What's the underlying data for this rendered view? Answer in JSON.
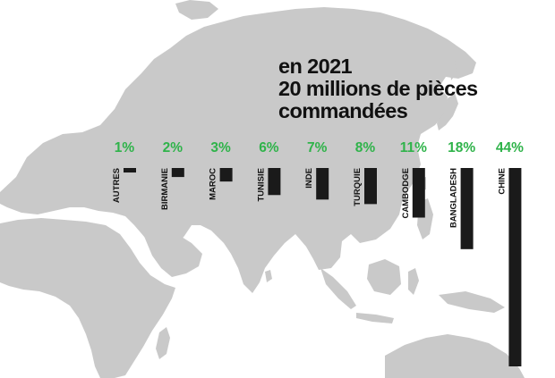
{
  "heading": {
    "line1": "en 2021",
    "line2": "20 millions de pièces",
    "line3": "commandées"
  },
  "colors": {
    "map": "#c9c9c9",
    "bar": "#1a1a1a",
    "value_label": "#2fb34a",
    "text": "#111111"
  },
  "chart_data": {
    "type": "bar",
    "orientation": "vertical-downward",
    "title": "en 2021 20 millions de pièces commandées",
    "categories": [
      "AUTRES",
      "BIRMANIE",
      "MAROC",
      "TUNISIE",
      "INDE",
      "TURQUIE",
      "CAMBODGE",
      "BANGLADESH",
      "CHINE"
    ],
    "values": [
      1,
      2,
      3,
      6,
      7,
      8,
      11,
      18,
      44
    ],
    "value_labels": [
      "1%",
      "2%",
      "3%",
      "6%",
      "7%",
      "8%",
      "11%",
      "18%",
      "44%"
    ],
    "unit": "%",
    "ylim": [
      0,
      44
    ],
    "grid": false,
    "legend": "none"
  }
}
